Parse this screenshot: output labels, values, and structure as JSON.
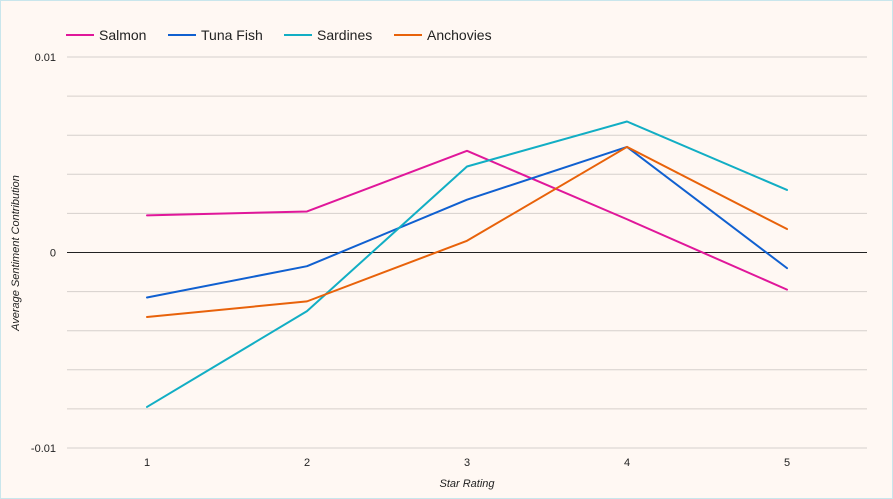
{
  "chart_data": {
    "type": "line",
    "title": "",
    "xlabel": "Star Rating",
    "ylabel": "Average Sentiment Contribution",
    "x": [
      1,
      2,
      3,
      4,
      5
    ],
    "x_tick_labels": [
      "1",
      "2",
      "3",
      "4",
      "5"
    ],
    "ylim": [
      -0.01,
      0.01
    ],
    "y_tick_labels": [
      "0.01",
      "0",
      "-0.01"
    ],
    "y_tick_values": [
      0.01,
      0,
      -0.01
    ],
    "grid": true,
    "legend_position": "top-left",
    "series": [
      {
        "name": "Salmon",
        "color": "#e0179a",
        "values": [
          0.0019,
          0.0021,
          0.0052,
          0.0017,
          -0.0019
        ]
      },
      {
        "name": "Tuna Fish",
        "color": "#1060d0",
        "values": [
          -0.0023,
          -0.0007,
          0.0027,
          0.0054,
          -0.0008
        ]
      },
      {
        "name": "Sardines",
        "color": "#12aec4",
        "values": [
          -0.0079,
          -0.003,
          0.0044,
          0.0067,
          0.0032
        ]
      },
      {
        "name": "Anchovies",
        "color": "#e8620a",
        "values": [
          -0.0033,
          -0.0025,
          0.0006,
          0.0054,
          0.0012
        ]
      }
    ]
  }
}
